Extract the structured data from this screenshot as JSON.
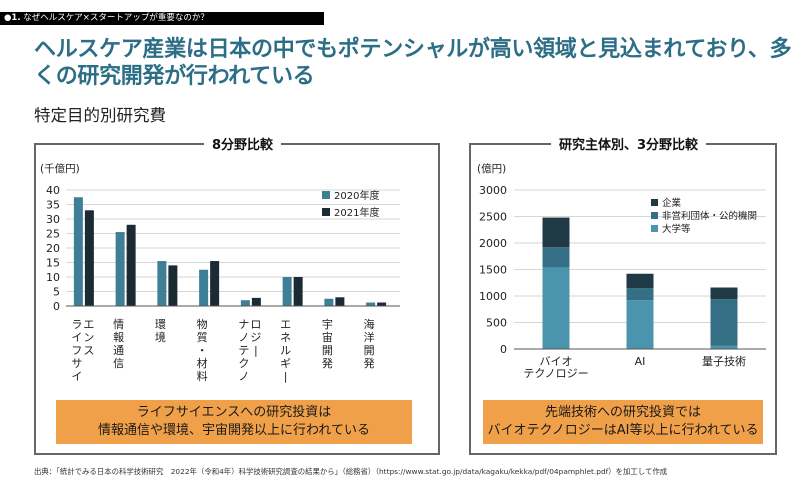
{
  "header": {
    "section_num": "●1.",
    "section_title": "なぜヘルスケア×スタートアップが重要なのか？",
    "headline": "ヘルスケア産業は日本の中でもポテンシャルが高い領域と見込まれており、多くの研究開発が行われている",
    "subtitle": "特定目的別研究費"
  },
  "colors": {
    "series_2020": "#3f7f96",
    "series_2021": "#1b2b33",
    "company": "#1f3a45",
    "nonprofit": "#356f86",
    "university": "#4a94ad",
    "grid": "#c8c8c8",
    "callout": "#f0a048"
  },
  "chart_data": [
    {
      "type": "bar",
      "title": "8分野比較",
      "ylabel": "(千億円)",
      "ylim": [
        0,
        40
      ],
      "yticks": [
        0,
        5,
        10,
        15,
        20,
        25,
        30,
        35,
        40
      ],
      "categories": [
        "ライフサイエンス",
        "情報通信",
        "環境",
        "物質・材料",
        "ナノテクノロジー",
        "エネルギー",
        "宇宙開発",
        "海洋開発"
      ],
      "series": [
        {
          "name": "2020年度",
          "values": [
            37.5,
            25.5,
            15.5,
            12.5,
            2.0,
            10.0,
            2.5,
            1.2
          ]
        },
        {
          "name": "2021年度",
          "values": [
            33.0,
            28.0,
            14.0,
            15.5,
            2.8,
            10.0,
            3.0,
            1.2
          ]
        }
      ],
      "legend_position": "top-right"
    },
    {
      "type": "bar",
      "stacked": true,
      "title": "研究主体別、3分野比較",
      "ylabel": "(億円)",
      "ylim": [
        0,
        3000
      ],
      "yticks": [
        0,
        500,
        1000,
        1500,
        2000,
        2500,
        3000
      ],
      "categories": [
        "バイオテクノロジー",
        "AI",
        "量子技術"
      ],
      "category_lines": [
        [
          "バイオ",
          "テクノロジー"
        ],
        [
          "AI"
        ],
        [
          "量子技術"
        ]
      ],
      "series": [
        {
          "name": "大学等",
          "values": [
            1540,
            920,
            60
          ]
        },
        {
          "name": "非営利団体・公的機関",
          "values": [
            380,
            230,
            880
          ]
        },
        {
          "name": "企業",
          "values": [
            560,
            270,
            220
          ]
        }
      ],
      "legend_order": [
        "企業",
        "非営利団体・公的機関",
        "大学等"
      ],
      "legend_position": "top-right"
    }
  ],
  "callouts": {
    "left_line1": "ライフサイエンスへの研究投資は",
    "left_line2": "情報通信や環境、宇宙開発以上に行われている",
    "right_line1": "先端技術への研究投資では",
    "right_line2": "バイオテクノロジーはAI等以上に行われている"
  },
  "source": "出典：「統計でみる日本の科学技術研究　2022年（令和4年）科学技術研究調査の結果から」（総務省）（https://www.stat.go.jp/data/kagaku/kekka/pdf/04pamphlet.pdf）を加工して作成"
}
